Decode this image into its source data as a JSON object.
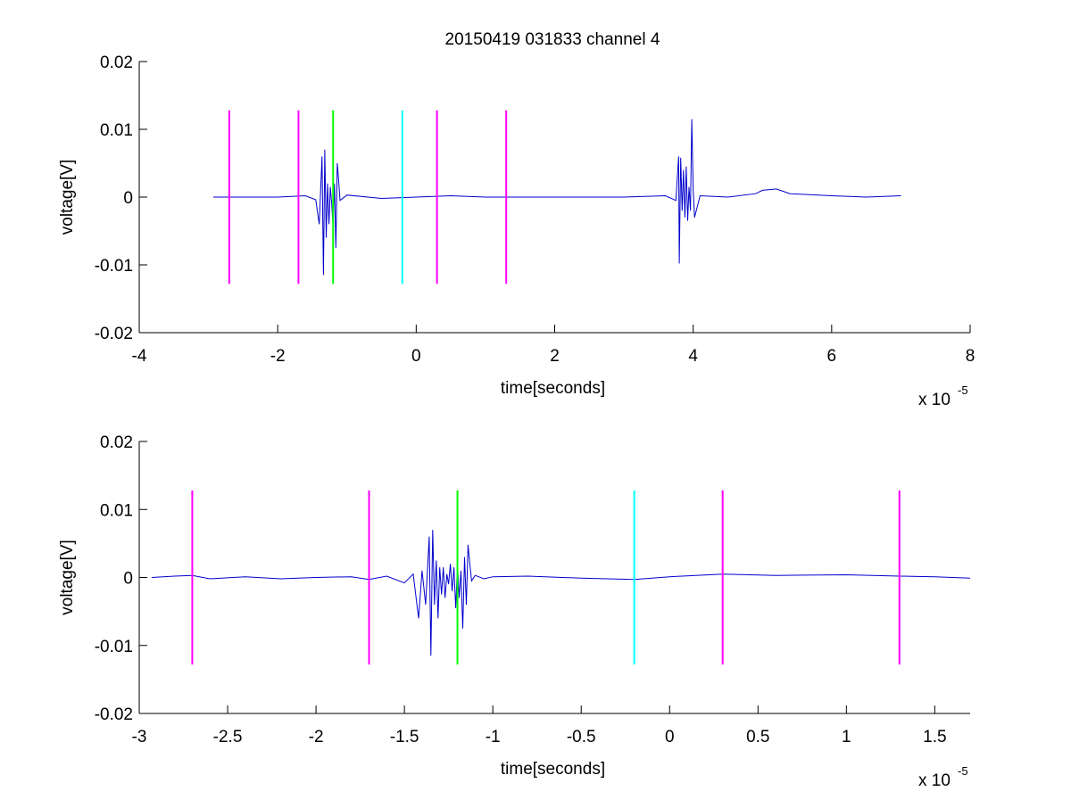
{
  "figure": {
    "title": "20150419 031833 channel 4"
  },
  "chart_data": [
    {
      "type": "line",
      "title": "20150419 031833 channel 4",
      "xlabel": "time[seconds]",
      "ylabel": "voltage[V]",
      "x_multiplier_base": "x 10",
      "x_multiplier_exp": "-5",
      "xlim": [
        -4,
        8
      ],
      "ylim": [
        -0.02,
        0.02
      ],
      "xticks": [
        -4,
        -2,
        0,
        2,
        4,
        6,
        8
      ],
      "xtick_labels": [
        "-4",
        "-2",
        "0",
        "2",
        "4",
        "6",
        "8"
      ],
      "yticks": [
        -0.02,
        -0.01,
        0,
        0.01,
        0.02
      ],
      "ytick_labels": [
        "-0.02",
        "-0.01",
        "0",
        "0.01",
        "0.02"
      ],
      "grid": false,
      "series": [
        {
          "color": "#0000cc",
          "x": [
            -2.93,
            -2.5,
            -2.0,
            -1.6,
            -1.45,
            -1.4,
            -1.36,
            -1.34,
            -1.32,
            -1.3,
            -1.28,
            -1.26,
            -1.24,
            -1.22,
            -1.2,
            -1.18,
            -1.16,
            -1.14,
            -1.12,
            -1.1,
            -1.0,
            -0.5,
            0,
            0.5,
            1.0,
            2.0,
            3.0,
            3.6,
            3.75,
            3.79,
            3.8,
            3.82,
            3.84,
            3.86,
            3.88,
            3.9,
            3.92,
            3.94,
            3.96,
            3.98,
            4.0,
            4.02,
            4.1,
            4.5,
            4.9,
            5.0,
            5.2,
            5.4,
            6.0,
            6.5,
            7.0
          ],
          "y": [
            0,
            0,
            0,
            0.0002,
            -0.0004,
            -0.004,
            0.006,
            -0.0115,
            0.007,
            -0.006,
            0.002,
            -0.004,
            0.0015,
            -0.001,
            -0.0045,
            0.002,
            -0.0075,
            0.005,
            0.0025,
            -0.0005,
            0.0003,
            -0.0002,
            0,
            0.0002,
            0,
            0,
            0,
            0.0002,
            -0.0005,
            0.006,
            -0.0098,
            0.0058,
            -0.002,
            0.004,
            -0.003,
            0.0045,
            -0.0035,
            0.0015,
            -0.002,
            0.0115,
            0.001,
            -0.003,
            0.0002,
            0,
            0.0005,
            0.001,
            0.0012,
            0.0005,
            0.0002,
            0,
            0.0002
          ]
        }
      ],
      "markers": [
        {
          "x": -2.7,
          "color": "#ff00ff",
          "ylow": -0.0128,
          "yhigh": 0.0128
        },
        {
          "x": -1.7,
          "color": "#ff00ff",
          "ylow": -0.0128,
          "yhigh": 0.0128
        },
        {
          "x": -1.2,
          "color": "#00ff00",
          "ylow": -0.0128,
          "yhigh": 0.0128
        },
        {
          "x": -0.2,
          "color": "#00ffff",
          "ylow": -0.0128,
          "yhigh": 0.0128
        },
        {
          "x": 0.3,
          "color": "#ff00ff",
          "ylow": -0.0128,
          "yhigh": 0.0128
        },
        {
          "x": 1.3,
          "color": "#ff00ff",
          "ylow": -0.0128,
          "yhigh": 0.0128
        }
      ]
    },
    {
      "type": "line",
      "title": "",
      "xlabel": "time[seconds]",
      "ylabel": "voltage[V]",
      "x_multiplier_base": "x 10",
      "x_multiplier_exp": "-5",
      "xlim": [
        -3.0,
        1.7
      ],
      "ylim": [
        -0.02,
        0.02
      ],
      "xticks": [
        -3,
        -2.5,
        -2,
        -1.5,
        -1,
        -0.5,
        0,
        0.5,
        1,
        1.5
      ],
      "xtick_labels": [
        "-3",
        "-2.5",
        "-2",
        "-1.5",
        "-1",
        "-0.5",
        "0",
        "0.5",
        "1",
        "1.5"
      ],
      "yticks": [
        -0.02,
        -0.01,
        0,
        0.01,
        0.02
      ],
      "ytick_labels": [
        "-0.02",
        "-0.01",
        "0",
        "0.01",
        "0.02"
      ],
      "grid": false,
      "series": [
        {
          "color": "#0000cc",
          "x": [
            -2.93,
            -2.8,
            -2.7,
            -2.6,
            -2.4,
            -2.2,
            -2.0,
            -1.8,
            -1.7,
            -1.6,
            -1.5,
            -1.45,
            -1.42,
            -1.4,
            -1.38,
            -1.36,
            -1.35,
            -1.34,
            -1.33,
            -1.32,
            -1.31,
            -1.3,
            -1.29,
            -1.28,
            -1.27,
            -1.26,
            -1.25,
            -1.24,
            -1.23,
            -1.22,
            -1.21,
            -1.2,
            -1.19,
            -1.18,
            -1.17,
            -1.16,
            -1.15,
            -1.14,
            -1.13,
            -1.12,
            -1.1,
            -1.05,
            -1.0,
            -0.8,
            -0.5,
            -0.2,
            0,
            0.3,
            0.6,
            1.0,
            1.3,
            1.5,
            1.7
          ],
          "y": [
            0,
            0.0002,
            0.0003,
            -0.0002,
            0.0001,
            -0.0002,
            0,
            0.0001,
            -0.0003,
            0.0002,
            -0.0008,
            0.0005,
            -0.006,
            0.001,
            -0.004,
            0.006,
            -0.0115,
            0.007,
            -0.004,
            0.0025,
            -0.006,
            0.0015,
            -0.0025,
            0.0015,
            -0.003,
            0.0005,
            -0.001,
            0.002,
            -0.002,
            0.0015,
            -0.0045,
            0.002,
            -0.003,
            0.001,
            -0.0075,
            0.003,
            -0.004,
            0.0048,
            0.002,
            -0.0005,
            0.0003,
            -0.0002,
            0.0001,
            0.0002,
            -0.0001,
            -0.0003,
            0.0001,
            0.0005,
            0.0003,
            0.0004,
            0.0002,
            0.0001,
            -0.0001
          ]
        }
      ],
      "markers": [
        {
          "x": -2.7,
          "color": "#ff00ff",
          "ylow": -0.0128,
          "yhigh": 0.0128
        },
        {
          "x": -1.7,
          "color": "#ff00ff",
          "ylow": -0.0128,
          "yhigh": 0.0128
        },
        {
          "x": -1.2,
          "color": "#00ff00",
          "ylow": -0.0128,
          "yhigh": 0.0128
        },
        {
          "x": -0.2,
          "color": "#00ffff",
          "ylow": -0.0128,
          "yhigh": 0.0128
        },
        {
          "x": 0.3,
          "color": "#ff00ff",
          "ylow": -0.0128,
          "yhigh": 0.0128
        },
        {
          "x": 1.3,
          "color": "#ff00ff",
          "ylow": -0.0128,
          "yhigh": 0.0128
        }
      ]
    }
  ]
}
